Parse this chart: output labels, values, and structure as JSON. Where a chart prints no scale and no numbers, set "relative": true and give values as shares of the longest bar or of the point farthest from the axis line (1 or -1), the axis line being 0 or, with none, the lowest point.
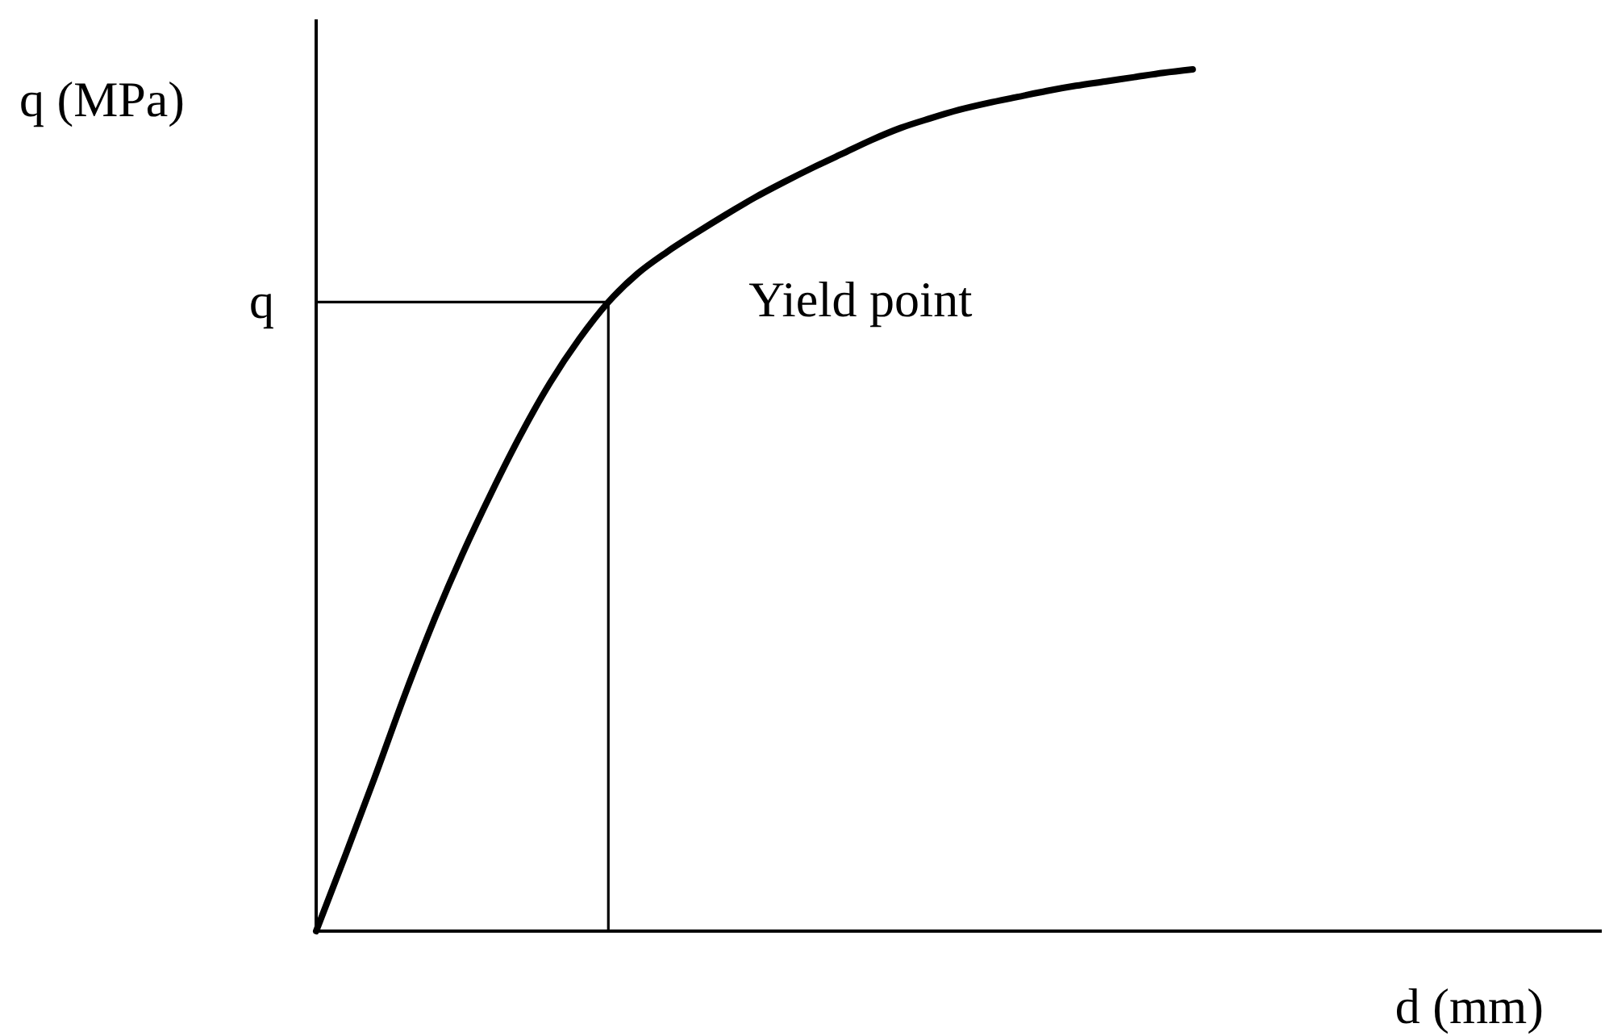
{
  "chart_data": {
    "type": "line",
    "relative": true,
    "xlabel": "d (mm)",
    "ylabel": "q (MPa)",
    "categories": [
      null,
      null,
      null,
      null,
      null,
      null,
      null,
      null,
      null,
      null,
      null,
      null,
      null,
      null,
      null,
      null,
      null,
      null,
      null,
      null,
      null,
      null,
      null,
      null,
      null,
      null,
      null,
      null,
      null,
      null,
      null,
      null,
      null,
      null,
      null,
      null,
      null,
      null,
      null,
      null,
      null,
      null,
      null,
      null,
      null
    ],
    "series": [
      {
        "color": "#000000",
        "values": [
          0,
          0.088,
          0.178,
          0.271,
          0.358,
          0.437,
          0.509,
          0.576,
          0.636,
          0.687,
          0.73,
          0.763,
          0.788,
          0.81,
          0.831,
          0.851,
          0.869,
          0.886,
          0.902,
          0.918,
          0.932,
          0.943,
          0.953,
          0.961,
          0.968,
          0.975,
          0.981,
          0.986,
          0.991,
          0.996,
          1,
          null,
          null,
          null,
          null,
          null,
          null,
          null,
          null,
          null,
          null,
          null,
          null,
          null,
          null
        ]
      }
    ],
    "ref_lines": [
      {
        "axis": "y",
        "value": 0.73,
        "label": "q"
      }
    ],
    "annotations": [
      "Yield point"
    ]
  }
}
